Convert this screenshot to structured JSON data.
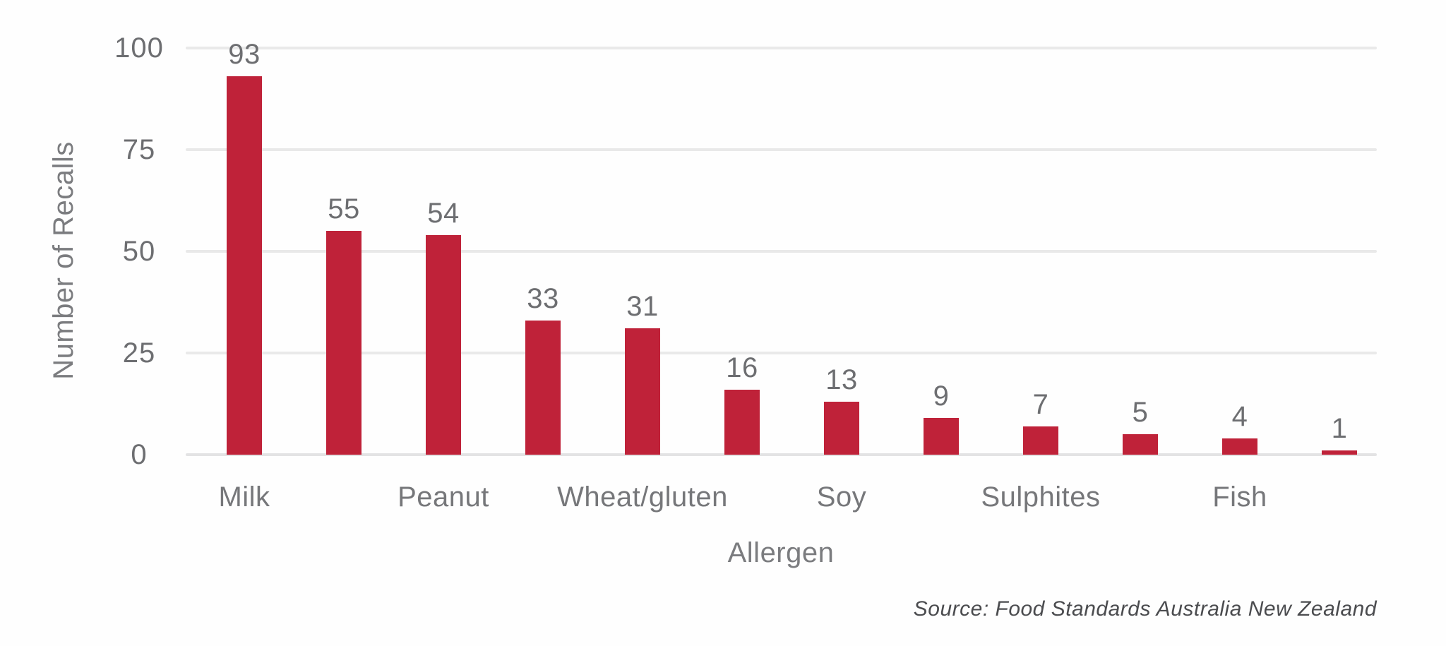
{
  "chart_data": {
    "type": "bar",
    "title": "",
    "xlabel": "Allergen",
    "ylabel": "Number of Recalls",
    "ylim": [
      0,
      100
    ],
    "yticks": [
      0,
      25,
      50,
      75,
      100
    ],
    "grid": true,
    "legend": "none",
    "categories": [
      "Milk",
      "",
      "Peanut",
      "",
      "Wheat/gluten",
      "",
      "Soy",
      "",
      "Sulphites",
      "",
      "Fish",
      ""
    ],
    "values": [
      93,
      55,
      54,
      33,
      31,
      16,
      13,
      9,
      7,
      5,
      4,
      1
    ],
    "bar_value_labels": [
      "93",
      "55",
      "54",
      "33",
      "31",
      "16",
      "13",
      "9",
      "7",
      "5",
      "4",
      "1"
    ],
    "bar_color": "#BF2239"
  },
  "source_note": "Source: Food Standards Australia New Zealand",
  "colors": {
    "bar": "#BF2239",
    "gridline": "#E9E9E9",
    "tick_text": "#6D6E71",
    "category_text": "#76777A",
    "axis_title_text": "#7B7C7F",
    "source_text": "#4B4C4F",
    "background": "#FEFEFE"
  }
}
